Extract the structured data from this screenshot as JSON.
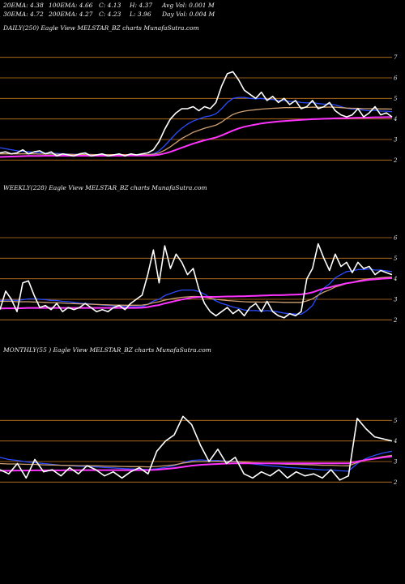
{
  "header": {
    "row1": [
      "20EMA: 4.38",
      "100EMA: 4.66",
      "C: 4.13",
      "H: 4.37",
      "Avg Vol: 0.001 M"
    ],
    "row2": [
      "30EMA: 4.72",
      "200EMA: 4.27",
      "C: 4.23",
      "L: 3.96",
      "Day Vol: 0.004  M"
    ]
  },
  "colors": {
    "background": "#000000",
    "price_line": "#ffffff",
    "level_line": "#c8781e",
    "ema_blue": "#2a4cff",
    "ema_magenta": "#ff33ff",
    "ema_tan": "#d0a070"
  },
  "chart_data": [
    {
      "type": "line",
      "title": "DAILY(250) Eagle  View  MELSTAR_BZ charts MunafaSutra.com",
      "y_ticks": [
        "7",
        "6",
        "5",
        "4",
        "3",
        "2"
      ],
      "levels": [
        7,
        6,
        5,
        4,
        3,
        2
      ],
      "ylim": [
        1.5,
        7.5
      ],
      "series": [
        {
          "role": "price",
          "color": "#ffffff",
          "values": [
            2.35,
            2.4,
            2.3,
            2.35,
            2.5,
            2.3,
            2.4,
            2.45,
            2.3,
            2.4,
            2.2,
            2.3,
            2.25,
            2.2,
            2.3,
            2.35,
            2.2,
            2.25,
            2.3,
            2.2,
            2.25,
            2.3,
            2.2,
            2.3,
            2.25,
            2.3,
            2.35,
            2.5,
            2.9,
            3.5,
            4.0,
            4.3,
            4.5,
            4.5,
            4.6,
            4.4,
            4.6,
            4.5,
            4.8,
            5.6,
            6.2,
            6.3,
            5.9,
            5.4,
            5.2,
            5.0,
            5.3,
            4.9,
            5.1,
            4.8,
            5.0,
            4.7,
            4.9,
            4.5,
            4.6,
            4.9,
            4.5,
            4.6,
            4.8,
            4.4,
            4.2,
            4.1,
            4.2,
            4.5,
            4.1,
            4.3,
            4.6,
            4.2,
            4.3,
            4.1
          ]
        },
        {
          "role": "ema",
          "color": "#2a4cff",
          "values": [
            2.6,
            2.55,
            2.5,
            2.45,
            2.42,
            2.4,
            2.38,
            2.36,
            2.34,
            2.33,
            2.32,
            2.3,
            2.29,
            2.28,
            2.28,
            2.28,
            2.27,
            2.26,
            2.26,
            2.26,
            2.26,
            2.26,
            2.26,
            2.26,
            2.26,
            2.26,
            2.27,
            2.3,
            2.45,
            2.7,
            3.0,
            3.3,
            3.55,
            3.75,
            3.9,
            4.0,
            4.1,
            4.15,
            4.25,
            4.5,
            4.8,
            5.0,
            5.05,
            5.05,
            5.0,
            4.98,
            5.0,
            4.95,
            4.95,
            4.9,
            4.9,
            4.85,
            4.85,
            4.8,
            4.78,
            4.8,
            4.75,
            4.72,
            4.72,
            4.68,
            4.6,
            4.52,
            4.48,
            4.48,
            4.42,
            4.4,
            4.42,
            4.38,
            4.38,
            4.35
          ]
        },
        {
          "role": "ema",
          "color": "#d0a070",
          "values": [
            2.3,
            2.3,
            2.3,
            2.3,
            2.3,
            2.3,
            2.3,
            2.29,
            2.29,
            2.29,
            2.28,
            2.28,
            2.28,
            2.27,
            2.27,
            2.27,
            2.27,
            2.26,
            2.26,
            2.26,
            2.26,
            2.26,
            2.26,
            2.26,
            2.26,
            2.26,
            2.26,
            2.28,
            2.35,
            2.48,
            2.65,
            2.85,
            3.05,
            3.2,
            3.35,
            3.45,
            3.55,
            3.62,
            3.7,
            3.85,
            4.05,
            4.22,
            4.32,
            4.38,
            4.42,
            4.45,
            4.48,
            4.5,
            4.52,
            4.53,
            4.55,
            4.55,
            4.56,
            4.56,
            4.56,
            4.57,
            4.57,
            4.57,
            4.58,
            4.57,
            4.55,
            4.53,
            4.52,
            4.52,
            4.5,
            4.5,
            4.5,
            4.49,
            4.49,
            4.48
          ]
        },
        {
          "role": "ema",
          "color": "#ff33ff",
          "values": [
            2.15,
            2.16,
            2.17,
            2.18,
            2.19,
            2.2,
            2.2,
            2.2,
            2.21,
            2.21,
            2.21,
            2.21,
            2.21,
            2.21,
            2.21,
            2.21,
            2.21,
            2.21,
            2.21,
            2.21,
            2.21,
            2.21,
            2.22,
            2.22,
            2.22,
            2.22,
            2.22,
            2.23,
            2.26,
            2.32,
            2.4,
            2.5,
            2.6,
            2.7,
            2.8,
            2.88,
            2.96,
            3.03,
            3.1,
            3.2,
            3.32,
            3.44,
            3.54,
            3.62,
            3.68,
            3.73,
            3.78,
            3.82,
            3.85,
            3.88,
            3.9,
            3.92,
            3.94,
            3.96,
            3.97,
            3.99,
            4.0,
            4.01,
            4.02,
            4.03,
            4.04,
            4.04,
            4.05,
            4.06,
            4.06,
            4.07,
            4.08,
            4.08,
            4.09,
            4.09
          ]
        }
      ]
    },
    {
      "type": "line",
      "title": "WEEKLY(228) Eagle  View  MELSTAR_BZ charts MunafaSutra.com",
      "y_ticks": [
        "6",
        "5",
        "4",
        "3",
        "2"
      ],
      "levels": [
        6,
        5,
        4,
        3,
        2
      ],
      "ylim": [
        1.5,
        7.5
      ],
      "series": [
        {
          "role": "price",
          "color": "#ffffff",
          "values": [
            2.5,
            3.4,
            3.0,
            2.4,
            3.8,
            3.9,
            3.2,
            2.6,
            2.7,
            2.5,
            2.8,
            2.4,
            2.6,
            2.5,
            2.6,
            2.8,
            2.6,
            2.4,
            2.5,
            2.4,
            2.6,
            2.7,
            2.5,
            2.8,
            3.0,
            3.2,
            4.2,
            5.4,
            3.8,
            5.6,
            4.5,
            5.2,
            4.8,
            4.2,
            4.5,
            3.5,
            2.8,
            2.4,
            2.2,
            2.4,
            2.6,
            2.3,
            2.5,
            2.2,
            2.6,
            2.8,
            2.4,
            2.9,
            2.4,
            2.2,
            2.1,
            2.3,
            2.2,
            2.4,
            4.0,
            4.5,
            5.7,
            5.0,
            4.4,
            5.2,
            4.6,
            4.8,
            4.3,
            4.8,
            4.5,
            4.6,
            4.2,
            4.4,
            4.3,
            4.2
          ]
        },
        {
          "role": "ema",
          "color": "#2a4cff",
          "values": [
            2.95,
            2.96,
            2.96,
            2.95,
            2.98,
            3.02,
            3.02,
            3.0,
            2.98,
            2.95,
            2.94,
            2.9,
            2.88,
            2.85,
            2.82,
            2.8,
            2.78,
            2.75,
            2.72,
            2.7,
            2.68,
            2.67,
            2.65,
            2.64,
            2.64,
            2.65,
            2.75,
            2.92,
            3.0,
            3.18,
            3.28,
            3.38,
            3.45,
            3.45,
            3.45,
            3.38,
            3.25,
            3.08,
            2.92,
            2.8,
            2.72,
            2.62,
            2.56,
            2.48,
            2.45,
            2.45,
            2.42,
            2.45,
            2.42,
            2.38,
            2.33,
            2.3,
            2.28,
            2.27,
            2.45,
            2.7,
            3.2,
            3.55,
            3.75,
            4.05,
            4.2,
            4.35,
            4.38,
            4.45,
            4.45,
            4.48,
            4.42,
            4.42,
            4.38,
            4.35
          ]
        },
        {
          "role": "ema",
          "color": "#d0a070",
          "values": [
            2.9,
            2.9,
            2.9,
            2.88,
            2.88,
            2.88,
            2.87,
            2.86,
            2.85,
            2.84,
            2.83,
            2.82,
            2.8,
            2.79,
            2.78,
            2.77,
            2.76,
            2.75,
            2.74,
            2.73,
            2.72,
            2.72,
            2.71,
            2.71,
            2.71,
            2.72,
            2.76,
            2.84,
            2.88,
            2.96,
            3.01,
            3.06,
            3.1,
            3.12,
            3.14,
            3.13,
            3.1,
            3.05,
            3.0,
            2.97,
            2.94,
            2.92,
            2.9,
            2.88,
            2.87,
            2.87,
            2.86,
            2.87,
            2.87,
            2.86,
            2.85,
            2.85,
            2.85,
            2.85,
            2.92,
            3.02,
            3.2,
            3.35,
            3.46,
            3.6,
            3.68,
            3.77,
            3.83,
            3.9,
            3.95,
            4.0,
            4.02,
            4.05,
            4.07,
            4.08
          ]
        },
        {
          "role": "ema",
          "color": "#ff33ff",
          "values": [
            2.55,
            2.56,
            2.56,
            2.56,
            2.57,
            2.58,
            2.58,
            2.58,
            2.58,
            2.58,
            2.58,
            2.58,
            2.58,
            2.58,
            2.58,
            2.58,
            2.58,
            2.58,
            2.58,
            2.58,
            2.58,
            2.58,
            2.58,
            2.58,
            2.58,
            2.59,
            2.62,
            2.68,
            2.72,
            2.8,
            2.86,
            2.93,
            2.99,
            3.04,
            3.09,
            3.11,
            3.12,
            3.12,
            3.12,
            3.13,
            3.14,
            3.14,
            3.15,
            3.15,
            3.16,
            3.17,
            3.18,
            3.19,
            3.2,
            3.2,
            3.21,
            3.22,
            3.23,
            3.24,
            3.28,
            3.34,
            3.44,
            3.52,
            3.58,
            3.66,
            3.72,
            3.78,
            3.82,
            3.87,
            3.91,
            3.95,
            3.97,
            4.0,
            4.02,
            4.04
          ]
        }
      ]
    },
    {
      "type": "line",
      "title": "MONTHLY(55                    ) Eagle  View  MELSTAR_BZ charts MunafaSutra.com",
      "y_ticks": [
        "5",
        "4",
        "3",
        "2"
      ],
      "levels": [
        5,
        4,
        3,
        2
      ],
      "ylim": [
        1.5,
        7.5
      ],
      "series": [
        {
          "role": "price",
          "color": "#ffffff",
          "values": [
            2.6,
            2.4,
            2.9,
            2.2,
            3.1,
            2.5,
            2.6,
            2.3,
            2.7,
            2.4,
            2.8,
            2.6,
            2.3,
            2.5,
            2.2,
            2.5,
            2.7,
            2.4,
            3.5,
            4.0,
            4.3,
            5.2,
            4.8,
            3.8,
            3.0,
            3.6,
            2.9,
            3.2,
            2.4,
            2.2,
            2.5,
            2.3,
            2.6,
            2.2,
            2.5,
            2.3,
            2.4,
            2.2,
            2.6,
            2.1,
            2.3,
            5.1,
            4.6,
            4.2,
            4.1,
            4.0
          ]
        },
        {
          "role": "ema",
          "color": "#2a4cff",
          "values": [
            3.2,
            3.1,
            3.05,
            2.98,
            2.95,
            2.9,
            2.86,
            2.82,
            2.8,
            2.77,
            2.76,
            2.74,
            2.71,
            2.69,
            2.66,
            2.64,
            2.63,
            2.61,
            2.65,
            2.72,
            2.8,
            2.95,
            3.05,
            3.08,
            3.05,
            3.05,
            3.02,
            3.01,
            2.95,
            2.88,
            2.84,
            2.79,
            2.76,
            2.71,
            2.69,
            2.66,
            2.63,
            2.59,
            2.59,
            2.55,
            2.53,
            2.9,
            3.15,
            3.3,
            3.42,
            3.5
          ]
        },
        {
          "role": "ema",
          "color": "#d0a070",
          "values": [
            2.9,
            2.88,
            2.88,
            2.86,
            2.86,
            2.84,
            2.83,
            2.82,
            2.81,
            2.8,
            2.8,
            2.79,
            2.78,
            2.77,
            2.76,
            2.75,
            2.75,
            2.74,
            2.76,
            2.8,
            2.84,
            2.92,
            2.98,
            3.0,
            3.0,
            3.01,
            3.0,
            3.0,
            2.97,
            2.94,
            2.92,
            2.9,
            2.89,
            2.87,
            2.86,
            2.85,
            2.84,
            2.82,
            2.82,
            2.8,
            2.79,
            2.95,
            3.07,
            3.16,
            3.24,
            3.3
          ]
        },
        {
          "role": "ema",
          "color": "#ff33ff",
          "values": [
            2.55,
            2.55,
            2.56,
            2.56,
            2.57,
            2.57,
            2.57,
            2.57,
            2.58,
            2.58,
            2.58,
            2.58,
            2.58,
            2.58,
            2.58,
            2.58,
            2.58,
            2.58,
            2.6,
            2.64,
            2.68,
            2.74,
            2.8,
            2.84,
            2.86,
            2.88,
            2.9,
            2.91,
            2.91,
            2.91,
            2.91,
            2.91,
            2.91,
            2.91,
            2.91,
            2.91,
            2.91,
            2.91,
            2.91,
            2.91,
            2.91,
            3.0,
            3.08,
            3.14,
            3.2,
            3.25
          ]
        }
      ]
    }
  ]
}
